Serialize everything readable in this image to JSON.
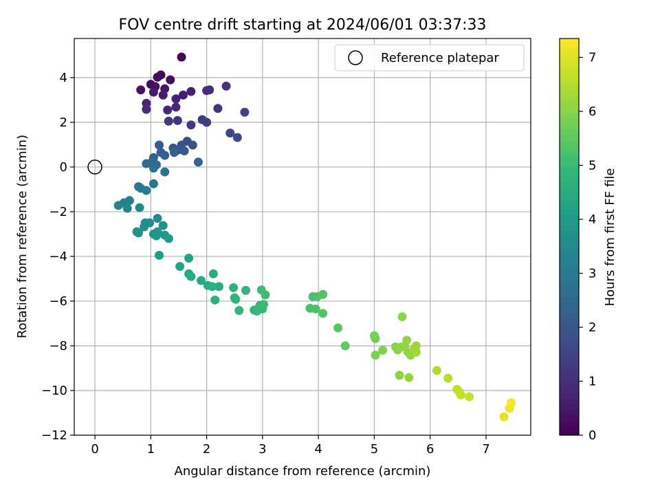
{
  "chart_data": {
    "type": "scatter",
    "title": "FOV centre drift starting at 2024/06/01 03:37:33",
    "xlabel": "Angular distance from reference (arcmin)",
    "ylabel": "Rotation from reference (arcmin)",
    "xlim": [
      -0.37,
      7.8
    ],
    "ylim": [
      -12.0,
      5.75
    ],
    "xticks": [
      0,
      1,
      2,
      3,
      4,
      5,
      6,
      7
    ],
    "xtick_labels": [
      "0",
      "1",
      "2",
      "3",
      "4",
      "5",
      "6",
      "7"
    ],
    "yticks": [
      -12,
      -10,
      -8,
      -6,
      -4,
      -2,
      0,
      2,
      4
    ],
    "ytick_labels": [
      "−12",
      "−10",
      "−8",
      "−6",
      "−4",
      "−2",
      "0",
      "2",
      "4"
    ],
    "grid": true,
    "legend": {
      "label": "Reference platepar",
      "placement": "top-right"
    },
    "reference_marker": {
      "x": 0,
      "y": 0,
      "style": "hollow-circle"
    },
    "colorbar": {
      "label": "Hours from first FF file",
      "colormap": "viridis",
      "range": [
        0,
        7.35
      ],
      "ticks": [
        0,
        1,
        2,
        3,
        4,
        5,
        6,
        7
      ],
      "tick_labels": [
        "0",
        "1",
        "2",
        "3",
        "4",
        "5",
        "6",
        "7"
      ]
    },
    "colors": {
      "viridis": [
        "#440154",
        "#482878",
        "#3e4989",
        "#31688e",
        "#26828e",
        "#1f9e89",
        "#35b779",
        "#6ece58",
        "#b5de2b",
        "#fde725"
      ]
    },
    "series": [
      {
        "points": [
          {
            "x": 1.55,
            "y": 4.92,
            "hours": 0.05
          },
          {
            "x": 1.18,
            "y": 4.12,
            "hours": 0.15
          },
          {
            "x": 1.12,
            "y": 4.02,
            "hours": 0.2
          },
          {
            "x": 1.35,
            "y": 3.9,
            "hours": 0.25
          },
          {
            "x": 1.0,
            "y": 3.7,
            "hours": 0.3
          },
          {
            "x": 1.08,
            "y": 3.6,
            "hours": 0.35
          },
          {
            "x": 0.82,
            "y": 3.45,
            "hours": 0.4
          },
          {
            "x": 1.25,
            "y": 3.5,
            "hours": 0.45
          },
          {
            "x": 1.05,
            "y": 3.35,
            "hours": 0.5
          },
          {
            "x": 1.22,
            "y": 3.22,
            "hours": 0.55
          },
          {
            "x": 1.58,
            "y": 3.22,
            "hours": 0.6
          },
          {
            "x": 1.72,
            "y": 3.38,
            "hours": 0.65
          },
          {
            "x": 1.45,
            "y": 3.05,
            "hours": 0.7
          },
          {
            "x": 0.92,
            "y": 2.85,
            "hours": 0.75
          },
          {
            "x": 1.45,
            "y": 2.68,
            "hours": 0.8
          },
          {
            "x": 1.3,
            "y": 2.55,
            "hours": 0.85
          },
          {
            "x": 0.92,
            "y": 2.58,
            "hours": 0.9
          },
          {
            "x": 2.0,
            "y": 3.42,
            "hours": 0.95
          },
          {
            "x": 2.05,
            "y": 3.45,
            "hours": 1.0
          },
          {
            "x": 2.35,
            "y": 3.62,
            "hours": 1.05
          },
          {
            "x": 2.2,
            "y": 2.62,
            "hours": 1.1
          },
          {
            "x": 1.48,
            "y": 2.08,
            "hours": 1.15
          },
          {
            "x": 1.32,
            "y": 2.05,
            "hours": 1.2
          },
          {
            "x": 1.72,
            "y": 1.88,
            "hours": 1.25
          },
          {
            "x": 1.92,
            "y": 2.12,
            "hours": 1.3
          },
          {
            "x": 2.0,
            "y": 2.0,
            "hours": 1.35
          },
          {
            "x": 2.68,
            "y": 2.45,
            "hours": 1.45
          },
          {
            "x": 2.42,
            "y": 1.52,
            "hours": 1.6
          },
          {
            "x": 2.55,
            "y": 1.32,
            "hours": 1.7
          },
          {
            "x": 1.65,
            "y": 1.15,
            "hours": 1.8
          },
          {
            "x": 1.75,
            "y": 0.98,
            "hours": 1.85
          },
          {
            "x": 1.55,
            "y": 0.98,
            "hours": 1.9
          },
          {
            "x": 1.4,
            "y": 0.85,
            "hours": 1.95
          },
          {
            "x": 1.48,
            "y": 0.75,
            "hours": 2.0
          },
          {
            "x": 1.6,
            "y": 0.72,
            "hours": 2.05
          },
          {
            "x": 1.15,
            "y": 0.98,
            "hours": 2.1
          },
          {
            "x": 1.18,
            "y": 0.65,
            "hours": 2.15
          },
          {
            "x": 1.05,
            "y": 0.42,
            "hours": 2.2
          },
          {
            "x": 1.25,
            "y": 0.52,
            "hours": 2.25
          },
          {
            "x": 1.42,
            "y": 0.65,
            "hours": 2.3
          },
          {
            "x": 1.85,
            "y": 0.22,
            "hours": 2.4
          },
          {
            "x": 0.92,
            "y": 0.15,
            "hours": 2.5
          },
          {
            "x": 1.02,
            "y": 0.22,
            "hours": 2.55
          },
          {
            "x": 1.1,
            "y": 0.1,
            "hours": 2.6
          },
          {
            "x": 1.05,
            "y": -0.05,
            "hours": 2.65
          },
          {
            "x": 1.25,
            "y": -0.22,
            "hours": 2.75
          },
          {
            "x": 1.05,
            "y": -0.75,
            "hours": 2.85
          },
          {
            "x": 0.78,
            "y": -0.88,
            "hours": 2.95
          },
          {
            "x": 0.82,
            "y": -0.95,
            "hours": 3.0
          },
          {
            "x": 0.92,
            "y": -1.05,
            "hours": 3.1
          },
          {
            "x": 0.62,
            "y": -1.5,
            "hours": 3.2
          },
          {
            "x": 0.52,
            "y": -1.6,
            "hours": 3.25
          },
          {
            "x": 0.42,
            "y": -1.72,
            "hours": 3.3
          },
          {
            "x": 0.58,
            "y": -1.85,
            "hours": 3.4
          },
          {
            "x": 0.8,
            "y": -1.82,
            "hours": 3.45
          },
          {
            "x": 1.12,
            "y": -2.3,
            "hours": 3.55
          },
          {
            "x": 0.9,
            "y": -2.5,
            "hours": 3.6
          },
          {
            "x": 0.98,
            "y": -2.5,
            "hours": 3.62
          },
          {
            "x": 0.88,
            "y": -2.68,
            "hours": 3.65
          },
          {
            "x": 1.22,
            "y": -2.62,
            "hours": 3.7
          },
          {
            "x": 0.75,
            "y": -2.9,
            "hours": 3.75
          },
          {
            "x": 0.78,
            "y": -2.95,
            "hours": 3.78
          },
          {
            "x": 1.05,
            "y": -3.0,
            "hours": 3.8
          },
          {
            "x": 1.12,
            "y": -2.9,
            "hours": 3.85
          },
          {
            "x": 1.1,
            "y": -3.08,
            "hours": 3.9
          },
          {
            "x": 1.25,
            "y": -3.05,
            "hours": 3.95
          },
          {
            "x": 1.32,
            "y": -3.2,
            "hours": 4.0
          },
          {
            "x": 1.15,
            "y": -3.95,
            "hours": 4.1
          },
          {
            "x": 1.68,
            "y": -4.08,
            "hours": 4.2
          },
          {
            "x": 1.52,
            "y": -4.45,
            "hours": 4.25
          },
          {
            "x": 1.68,
            "y": -4.78,
            "hours": 4.35
          },
          {
            "x": 1.72,
            "y": -4.9,
            "hours": 4.4
          },
          {
            "x": 1.9,
            "y": -5.08,
            "hours": 4.45
          },
          {
            "x": 2.12,
            "y": -4.78,
            "hours": 4.5
          },
          {
            "x": 2.02,
            "y": -5.3,
            "hours": 4.55
          },
          {
            "x": 2.1,
            "y": -5.35,
            "hours": 4.6
          },
          {
            "x": 2.22,
            "y": -5.35,
            "hours": 4.62
          },
          {
            "x": 2.48,
            "y": -5.4,
            "hours": 4.7
          },
          {
            "x": 2.15,
            "y": -5.95,
            "hours": 4.72
          },
          {
            "x": 2.5,
            "y": -5.85,
            "hours": 4.75
          },
          {
            "x": 2.52,
            "y": -5.92,
            "hours": 4.78
          },
          {
            "x": 2.7,
            "y": -5.52,
            "hours": 4.8
          },
          {
            "x": 2.58,
            "y": -6.42,
            "hours": 4.82
          },
          {
            "x": 2.85,
            "y": -6.4,
            "hours": 4.88
          },
          {
            "x": 2.9,
            "y": -6.45,
            "hours": 4.9
          },
          {
            "x": 2.95,
            "y": -6.2,
            "hours": 4.92
          },
          {
            "x": 3.0,
            "y": -6.35,
            "hours": 4.95
          },
          {
            "x": 3.02,
            "y": -6.15,
            "hours": 5.0
          },
          {
            "x": 2.98,
            "y": -5.5,
            "hours": 5.02
          },
          {
            "x": 3.05,
            "y": -5.72,
            "hours": 5.05
          },
          {
            "x": 3.85,
            "y": -6.32,
            "hours": 5.2
          },
          {
            "x": 3.95,
            "y": -6.35,
            "hours": 5.22
          },
          {
            "x": 3.9,
            "y": -5.8,
            "hours": 5.25
          },
          {
            "x": 3.98,
            "y": -5.8,
            "hours": 5.27
          },
          {
            "x": 4.08,
            "y": -5.7,
            "hours": 5.3
          },
          {
            "x": 4.08,
            "y": -6.55,
            "hours": 5.32
          },
          {
            "x": 4.35,
            "y": -7.2,
            "hours": 5.45
          },
          {
            "x": 4.48,
            "y": -8.0,
            "hours": 5.5
          },
          {
            "x": 5.0,
            "y": -7.55,
            "hours": 5.8
          },
          {
            "x": 5.02,
            "y": -7.68,
            "hours": 5.82
          },
          {
            "x": 5.02,
            "y": -8.42,
            "hours": 5.85
          },
          {
            "x": 5.15,
            "y": -8.2,
            "hours": 5.9
          },
          {
            "x": 5.38,
            "y": -8.05,
            "hours": 6.0
          },
          {
            "x": 5.42,
            "y": -8.18,
            "hours": 6.02
          },
          {
            "x": 5.45,
            "y": -9.32,
            "hours": 6.05
          },
          {
            "x": 5.48,
            "y": -8.05,
            "hours": 6.07
          },
          {
            "x": 5.5,
            "y": -6.7,
            "hours": 6.08
          },
          {
            "x": 5.55,
            "y": -8.05,
            "hours": 6.1
          },
          {
            "x": 5.58,
            "y": -7.75,
            "hours": 6.12
          },
          {
            "x": 5.6,
            "y": -8.28,
            "hours": 6.14
          },
          {
            "x": 5.62,
            "y": -9.42,
            "hours": 6.16
          },
          {
            "x": 5.65,
            "y": -8.42,
            "hours": 6.18
          },
          {
            "x": 5.7,
            "y": -8.3,
            "hours": 6.2
          },
          {
            "x": 5.72,
            "y": -8.12,
            "hours": 6.22
          },
          {
            "x": 5.75,
            "y": -8.0,
            "hours": 6.24
          },
          {
            "x": 5.75,
            "y": -8.28,
            "hours": 6.26
          },
          {
            "x": 6.12,
            "y": -9.1,
            "hours": 6.45
          },
          {
            "x": 6.32,
            "y": -9.45,
            "hours": 6.55
          },
          {
            "x": 6.48,
            "y": -9.95,
            "hours": 6.62
          },
          {
            "x": 6.52,
            "y": -10.05,
            "hours": 6.65
          },
          {
            "x": 6.55,
            "y": -10.2,
            "hours": 6.68
          },
          {
            "x": 6.7,
            "y": -10.28,
            "hours": 6.75
          },
          {
            "x": 7.32,
            "y": -11.18,
            "hours": 7.1
          },
          {
            "x": 7.42,
            "y": -10.8,
            "hours": 7.2
          },
          {
            "x": 7.45,
            "y": -10.55,
            "hours": 7.3
          }
        ]
      }
    ]
  }
}
